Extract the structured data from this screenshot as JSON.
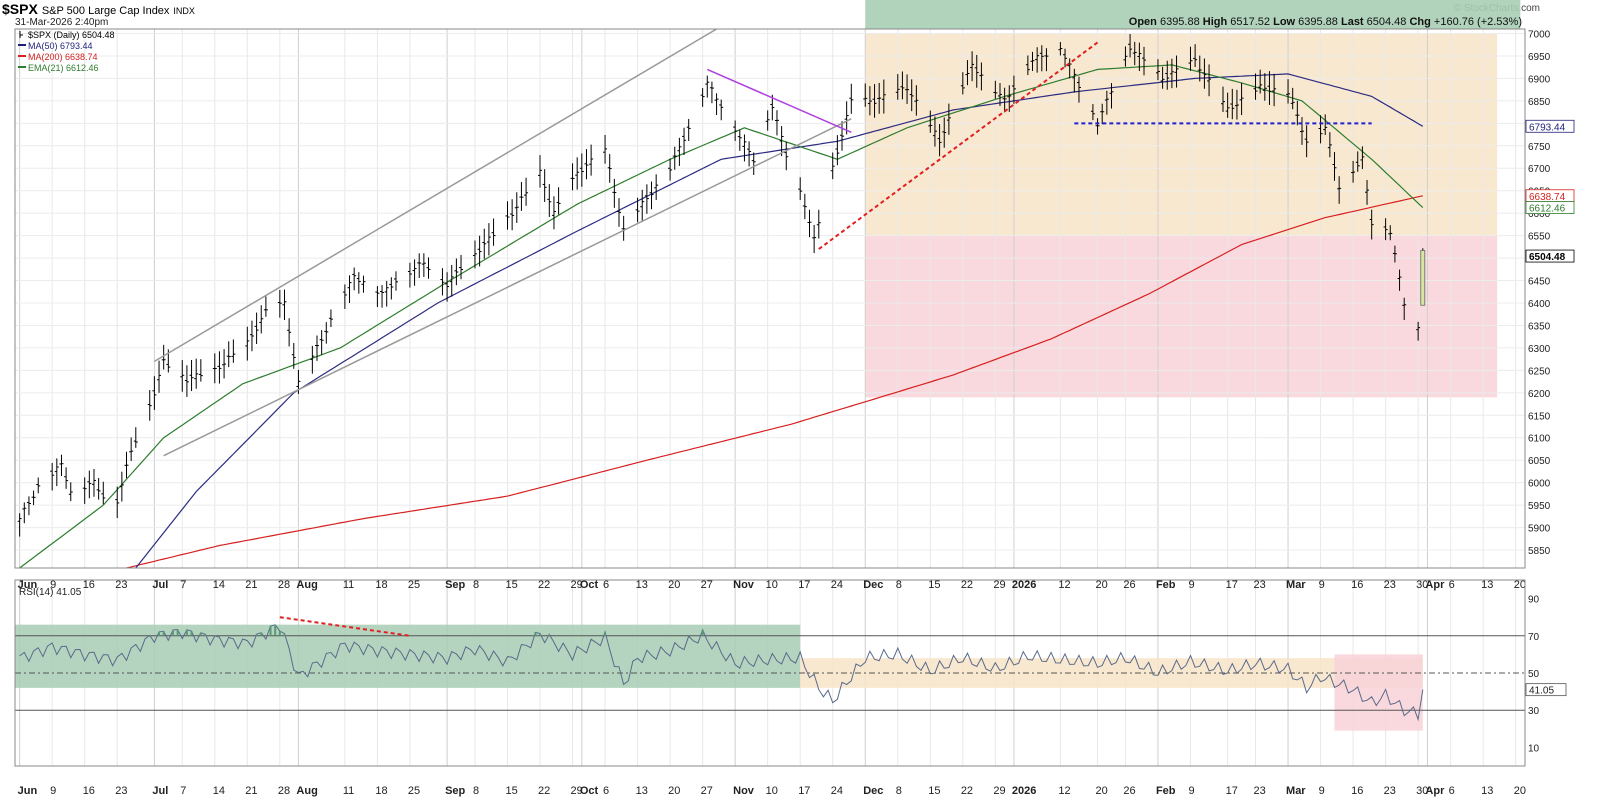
{
  "header": {
    "symbol": "$SPX",
    "description": "S&P 500 Large Cap Index",
    "exchange": "INDX",
    "date": "31-Mar-2026 2:40pm",
    "credit": "© StockCharts.com",
    "ohlc": {
      "open_label": "Open",
      "open": "6395.88",
      "high_label": "High",
      "high": "6517.52",
      "low_label": "Low",
      "low": "6395.88",
      "last_label": "Last",
      "last": "6504.48",
      "chg_label": "Chg",
      "chg": "+160.76 (+2.53%)"
    }
  },
  "legend": [
    {
      "label": "$SPX (Daily) 6504.48",
      "color": "#000000"
    },
    {
      "label": "MA(50) 6793.44",
      "color": "#1f1f7a"
    },
    {
      "label": "MA(200) 6638.74",
      "color": "#d62020"
    },
    {
      "label": "EMA(21) 6612.46",
      "color": "#2e7d2e"
    }
  ],
  "colors": {
    "price": "#000000",
    "ma50": "#2b2b80",
    "ma200": "#d62020",
    "ema21": "#2e7d2e",
    "rsi": "#5a6a8a",
    "zone_green": "#a8cdb4",
    "zone_orange": "#f8e4c8",
    "zone_red": "#f8d2d8",
    "trendline": "#999999",
    "magenta": "#b040e0",
    "dashed_red": "#e02020",
    "dashed_blue": "#2020cc"
  },
  "chart_data": [
    {
      "type": "ohlc",
      "title": "$SPX (Daily) 6504.48",
      "y_ticks": [
        5850,
        5900,
        5950,
        6000,
        6050,
        6100,
        6150,
        6200,
        6250,
        6300,
        6350,
        6400,
        6450,
        6500,
        6550,
        6600,
        6650,
        6700,
        6750,
        6800,
        6850,
        6900,
        6950,
        7000
      ],
      "ylim": [
        5810,
        7010
      ],
      "x_ticks": [
        {
          "label": "Jun",
          "date": "2025-06-02",
          "major": true
        },
        {
          "label": "9",
          "date": "2025-06-09"
        },
        {
          "label": "16",
          "date": "2025-06-16"
        },
        {
          "label": "23",
          "date": "2025-06-23"
        },
        {
          "label": "Jul",
          "date": "2025-07-01",
          "major": true
        },
        {
          "label": "7",
          "date": "2025-07-07"
        },
        {
          "label": "14",
          "date": "2025-07-14"
        },
        {
          "label": "21",
          "date": "2025-07-21"
        },
        {
          "label": "28",
          "date": "2025-07-28"
        },
        {
          "label": "Aug",
          "date": "2025-08-01",
          "major": true
        },
        {
          "label": "11",
          "date": "2025-08-11"
        },
        {
          "label": "18",
          "date": "2025-08-18"
        },
        {
          "label": "25",
          "date": "2025-08-25"
        },
        {
          "label": "Sep",
          "date": "2025-09-02",
          "major": true
        },
        {
          "label": "8",
          "date": "2025-09-08"
        },
        {
          "label": "15",
          "date": "2025-09-15"
        },
        {
          "label": "22",
          "date": "2025-09-22"
        },
        {
          "label": "29",
          "date": "2025-09-29"
        },
        {
          "label": "Oct",
          "date": "2025-10-01",
          "major": true
        },
        {
          "label": "6",
          "date": "2025-10-06"
        },
        {
          "label": "13",
          "date": "2025-10-13"
        },
        {
          "label": "20",
          "date": "2025-10-20"
        },
        {
          "label": "27",
          "date": "2025-10-27"
        },
        {
          "label": "Nov",
          "date": "2025-11-03",
          "major": true
        },
        {
          "label": "10",
          "date": "2025-11-10"
        },
        {
          "label": "17",
          "date": "2025-11-17"
        },
        {
          "label": "24",
          "date": "2025-11-24"
        },
        {
          "label": "Dec",
          "date": "2025-12-01",
          "major": true
        },
        {
          "label": "8",
          "date": "2025-12-08"
        },
        {
          "label": "15",
          "date": "2025-12-15"
        },
        {
          "label": "22",
          "date": "2025-12-22"
        },
        {
          "label": "29",
          "date": "2025-12-29"
        },
        {
          "label": "2026",
          "date": "2026-01-02",
          "major": true
        },
        {
          "label": "12",
          "date": "2026-01-12"
        },
        {
          "label": "20",
          "date": "2026-01-20"
        },
        {
          "label": "26",
          "date": "2026-01-26"
        },
        {
          "label": "Feb",
          "date": "2026-02-02",
          "major": true
        },
        {
          "label": "9",
          "date": "2026-02-09"
        },
        {
          "label": "17",
          "date": "2026-02-17"
        },
        {
          "label": "23",
          "date": "2026-02-23"
        },
        {
          "label": "Mar",
          "date": "2026-03-02",
          "major": true
        },
        {
          "label": "9",
          "date": "2026-03-09"
        },
        {
          "label": "16",
          "date": "2026-03-16"
        },
        {
          "label": "23",
          "date": "2026-03-23"
        },
        {
          "label": "30",
          "date": "2026-03-30"
        },
        {
          "label": "Apr",
          "date": "2026-04-01",
          "major": true
        },
        {
          "label": "6",
          "date": "2026-04-06"
        },
        {
          "label": "13",
          "date": "2026-04-13"
        },
        {
          "label": "20",
          "date": "2026-04-20"
        }
      ],
      "price_points": [
        [
          "2025-06-02",
          5920
        ],
        [
          "2025-06-06",
          5990
        ],
        [
          "2025-06-11",
          6040
        ],
        [
          "2025-06-13",
          5980
        ],
        [
          "2025-06-18",
          6000
        ],
        [
          "2025-06-20",
          5970
        ],
        [
          "2025-06-23",
          5960
        ],
        [
          "2025-06-26",
          6070
        ],
        [
          "2025-07-01",
          6200
        ],
        [
          "2025-07-03",
          6270
        ],
        [
          "2025-07-08",
          6230
        ],
        [
          "2025-07-14",
          6250
        ],
        [
          "2025-07-21",
          6310
        ],
        [
          "2025-07-25",
          6380
        ],
        [
          "2025-07-29",
          6400
        ],
        [
          "2025-08-01",
          6220
        ],
        [
          "2025-08-05",
          6300
        ],
        [
          "2025-08-08",
          6360
        ],
        [
          "2025-08-13",
          6460
        ],
        [
          "2025-08-19",
          6420
        ],
        [
          "2025-08-22",
          6450
        ],
        [
          "2025-08-28",
          6490
        ],
        [
          "2025-09-02",
          6440
        ],
        [
          "2025-09-05",
          6480
        ],
        [
          "2025-09-10",
          6530
        ],
        [
          "2025-09-16",
          6600
        ],
        [
          "2025-09-22",
          6690
        ],
        [
          "2025-09-25",
          6600
        ],
        [
          "2025-09-30",
          6690
        ],
        [
          "2025-10-06",
          6740
        ],
        [
          "2025-10-10",
          6560
        ],
        [
          "2025-10-14",
          6620
        ],
        [
          "2025-10-20",
          6700
        ],
        [
          "2025-10-24",
          6790
        ],
        [
          "2025-10-28",
          6890
        ],
        [
          "2025-10-31",
          6840
        ],
        [
          "2025-11-04",
          6770
        ],
        [
          "2025-11-07",
          6720
        ],
        [
          "2025-11-11",
          6840
        ],
        [
          "2025-11-14",
          6730
        ],
        [
          "2025-11-18",
          6620
        ],
        [
          "2025-11-20",
          6540
        ],
        [
          "2025-11-24",
          6700
        ],
        [
          "2025-11-28",
          6850
        ],
        [
          "2025-12-03",
          6850
        ],
        [
          "2025-12-10",
          6880
        ],
        [
          "2025-12-17",
          6760
        ],
        [
          "2025-12-24",
          6930
        ],
        [
          "2025-12-31",
          6850
        ],
        [
          "2026-01-06",
          6940
        ],
        [
          "2026-01-12",
          6970
        ],
        [
          "2026-01-20",
          6800
        ],
        [
          "2026-01-27",
          6970
        ],
        [
          "2026-02-03",
          6900
        ],
        [
          "2026-02-10",
          6940
        ],
        [
          "2026-02-17",
          6830
        ],
        [
          "2026-02-24",
          6880
        ],
        [
          "2026-03-02",
          6870
        ],
        [
          "2026-03-06",
          6760
        ],
        [
          "2026-03-10",
          6790
        ],
        [
          "2026-03-13",
          6660
        ],
        [
          "2026-03-18",
          6720
        ],
        [
          "2026-03-20",
          6580
        ],
        [
          "2026-03-24",
          6560
        ],
        [
          "2026-03-27",
          6400
        ],
        [
          "2026-03-30",
          6343
        ],
        [
          "2026-03-31",
          6504
        ]
      ],
      "ma200_points": [
        [
          "2025-06-25",
          5810
        ],
        [
          "2025-07-15",
          5860
        ],
        [
          "2025-08-15",
          5920
        ],
        [
          "2025-09-15",
          5970
        ],
        [
          "2025-10-15",
          6050
        ],
        [
          "2025-11-15",
          6130
        ],
        [
          "2025-12-01",
          6180
        ],
        [
          "2025-12-20",
          6240
        ],
        [
          "2026-01-10",
          6320
        ],
        [
          "2026-01-31",
          6420
        ],
        [
          "2026-02-20",
          6530
        ],
        [
          "2026-03-10",
          6590
        ],
        [
          "2026-03-31",
          6638.74
        ]
      ],
      "ma50_points": [
        [
          "2025-06-27",
          5810
        ],
        [
          "2025-07-10",
          5980
        ],
        [
          "2025-07-31",
          6200
        ],
        [
          "2025-08-31",
          6400
        ],
        [
          "2025-09-30",
          6560
        ],
        [
          "2025-10-31",
          6720
        ],
        [
          "2025-11-25",
          6760
        ],
        [
          "2025-12-20",
          6830
        ],
        [
          "2026-01-15",
          6870
        ],
        [
          "2026-02-10",
          6900
        ],
        [
          "2026-03-02",
          6910
        ],
        [
          "2026-03-20",
          6860
        ],
        [
          "2026-03-31",
          6793.44
        ]
      ],
      "ema21_points": [
        [
          "2025-06-02",
          5810
        ],
        [
          "2025-06-20",
          5950
        ],
        [
          "2025-07-03",
          6100
        ],
        [
          "2025-07-20",
          6220
        ],
        [
          "2025-08-10",
          6300
        ],
        [
          "2025-09-01",
          6440
        ],
        [
          "2025-09-30",
          6620
        ],
        [
          "2025-10-20",
          6720
        ],
        [
          "2025-11-05",
          6790
        ],
        [
          "2025-11-25",
          6720
        ],
        [
          "2025-12-10",
          6790
        ],
        [
          "2025-12-31",
          6860
        ],
        [
          "2026-01-20",
          6920
        ],
        [
          "2026-02-05",
          6930
        ],
        [
          "2026-02-20",
          6890
        ],
        [
          "2026-03-05",
          6850
        ],
        [
          "2026-03-20",
          6720
        ],
        [
          "2026-03-31",
          6612.46
        ]
      ],
      "zones": [
        {
          "from": "2025-12-01",
          "to": "2026-04-16",
          "y_low": 6550,
          "y_high": 7000,
          "color": "orange"
        },
        {
          "from": "2025-12-01",
          "to": "2026-04-16",
          "y_low": 6190,
          "y_high": 6550,
          "color": "red"
        },
        {
          "from": "2025-12-01",
          "to": "2026-04-21",
          "y_high_above_plot": true,
          "color": "green"
        }
      ],
      "annotations": [
        {
          "type": "line",
          "style": "solid",
          "color": "trendline",
          "from": [
            "2025-07-01",
            6270
          ],
          "to": [
            "2025-10-30",
            7010
          ]
        },
        {
          "type": "line",
          "style": "solid",
          "color": "trendline",
          "from": [
            "2025-07-03",
            6060
          ],
          "to": [
            "2025-11-28",
            6810
          ]
        },
        {
          "type": "line",
          "style": "solid",
          "color": "magenta",
          "from": [
            "2025-10-28",
            6920
          ],
          "to": [
            "2025-11-28",
            6780
          ]
        },
        {
          "type": "line",
          "style": "dashed",
          "color": "dashed_red",
          "from": [
            "2025-11-21",
            6520
          ],
          "to": [
            "2026-01-20",
            6980
          ]
        },
        {
          "type": "line",
          "style": "dashed",
          "color": "dashed_blue",
          "from": [
            "2026-01-15",
            6800
          ],
          "to": [
            "2026-03-20",
            6800
          ]
        }
      ],
      "right_labels": [
        {
          "value": 6793.44,
          "text": "6793.44",
          "color": "#1f1f7a"
        },
        {
          "value": 6638.74,
          "text": "6638.74",
          "color": "#d62020"
        },
        {
          "value": 6612.46,
          "text": "6612.46",
          "color": "#2e7d2e"
        },
        {
          "value": 6504.48,
          "text": "6504.48",
          "color": "#000000",
          "bold": true
        }
      ]
    },
    {
      "type": "line",
      "title": "RSI(14) 41.05",
      "y_ticks": [
        10,
        30,
        50,
        70,
        90
      ],
      "ylim": [
        0,
        100
      ],
      "reference_lines": [
        {
          "value": 70,
          "style": "solid"
        },
        {
          "value": 50,
          "style": "dashdot"
        },
        {
          "value": 30,
          "style": "solid"
        }
      ],
      "last": {
        "value": 41.05,
        "text": "41.05"
      },
      "x": [
        "2025-06-02",
        "2025-06-09",
        "2025-06-16",
        "2025-06-23",
        "2025-07-01",
        "2025-07-07",
        "2025-07-14",
        "2025-07-21",
        "2025-07-28",
        "2025-08-01",
        "2025-08-11",
        "2025-08-18",
        "2025-08-25",
        "2025-09-02",
        "2025-09-08",
        "2025-09-15",
        "2025-09-22",
        "2025-09-29",
        "2025-10-06",
        "2025-10-10",
        "2025-10-13",
        "2025-10-20",
        "2025-10-27",
        "2025-11-03",
        "2025-11-10",
        "2025-11-17",
        "2025-11-21",
        "2025-11-24",
        "2025-12-01",
        "2025-12-08",
        "2025-12-15",
        "2025-12-22",
        "2025-12-29",
        "2026-01-05",
        "2026-01-12",
        "2026-01-20",
        "2026-01-26",
        "2026-02-02",
        "2026-02-09",
        "2026-02-17",
        "2026-02-23",
        "2026-03-02",
        "2026-03-06",
        "2026-03-09",
        "2026-03-16",
        "2026-03-20",
        "2026-03-23",
        "2026-03-27",
        "2026-03-30",
        "2026-03-31"
      ],
      "values": [
        58,
        64,
        60,
        57,
        70,
        72,
        68,
        66,
        76,
        48,
        65,
        62,
        60,
        58,
        63,
        56,
        71,
        60,
        69,
        44,
        58,
        62,
        70,
        55,
        57,
        58,
        42,
        35,
        58,
        60,
        51,
        58,
        52,
        59,
        57,
        55,
        58,
        50,
        56,
        51,
        55,
        52,
        42,
        48,
        41,
        34,
        38,
        30,
        28,
        41.05
      ],
      "zones": [
        {
          "from": "2025-06-01",
          "to": "2025-11-17",
          "y_low": 42,
          "y_high": 76,
          "color": "green"
        },
        {
          "from": "2025-11-17",
          "to": "2026-03-31",
          "y_low": 42,
          "y_high": 58,
          "color": "orange"
        },
        {
          "from": "2026-03-12",
          "to": "2026-03-31",
          "y_low": 19,
          "y_high": 60,
          "color": "red"
        }
      ],
      "annotations": [
        {
          "type": "line",
          "style": "dashed",
          "color": "dashed_red",
          "from": [
            "2025-07-28",
            80
          ],
          "to": [
            "2025-08-25",
            70
          ]
        }
      ]
    }
  ]
}
